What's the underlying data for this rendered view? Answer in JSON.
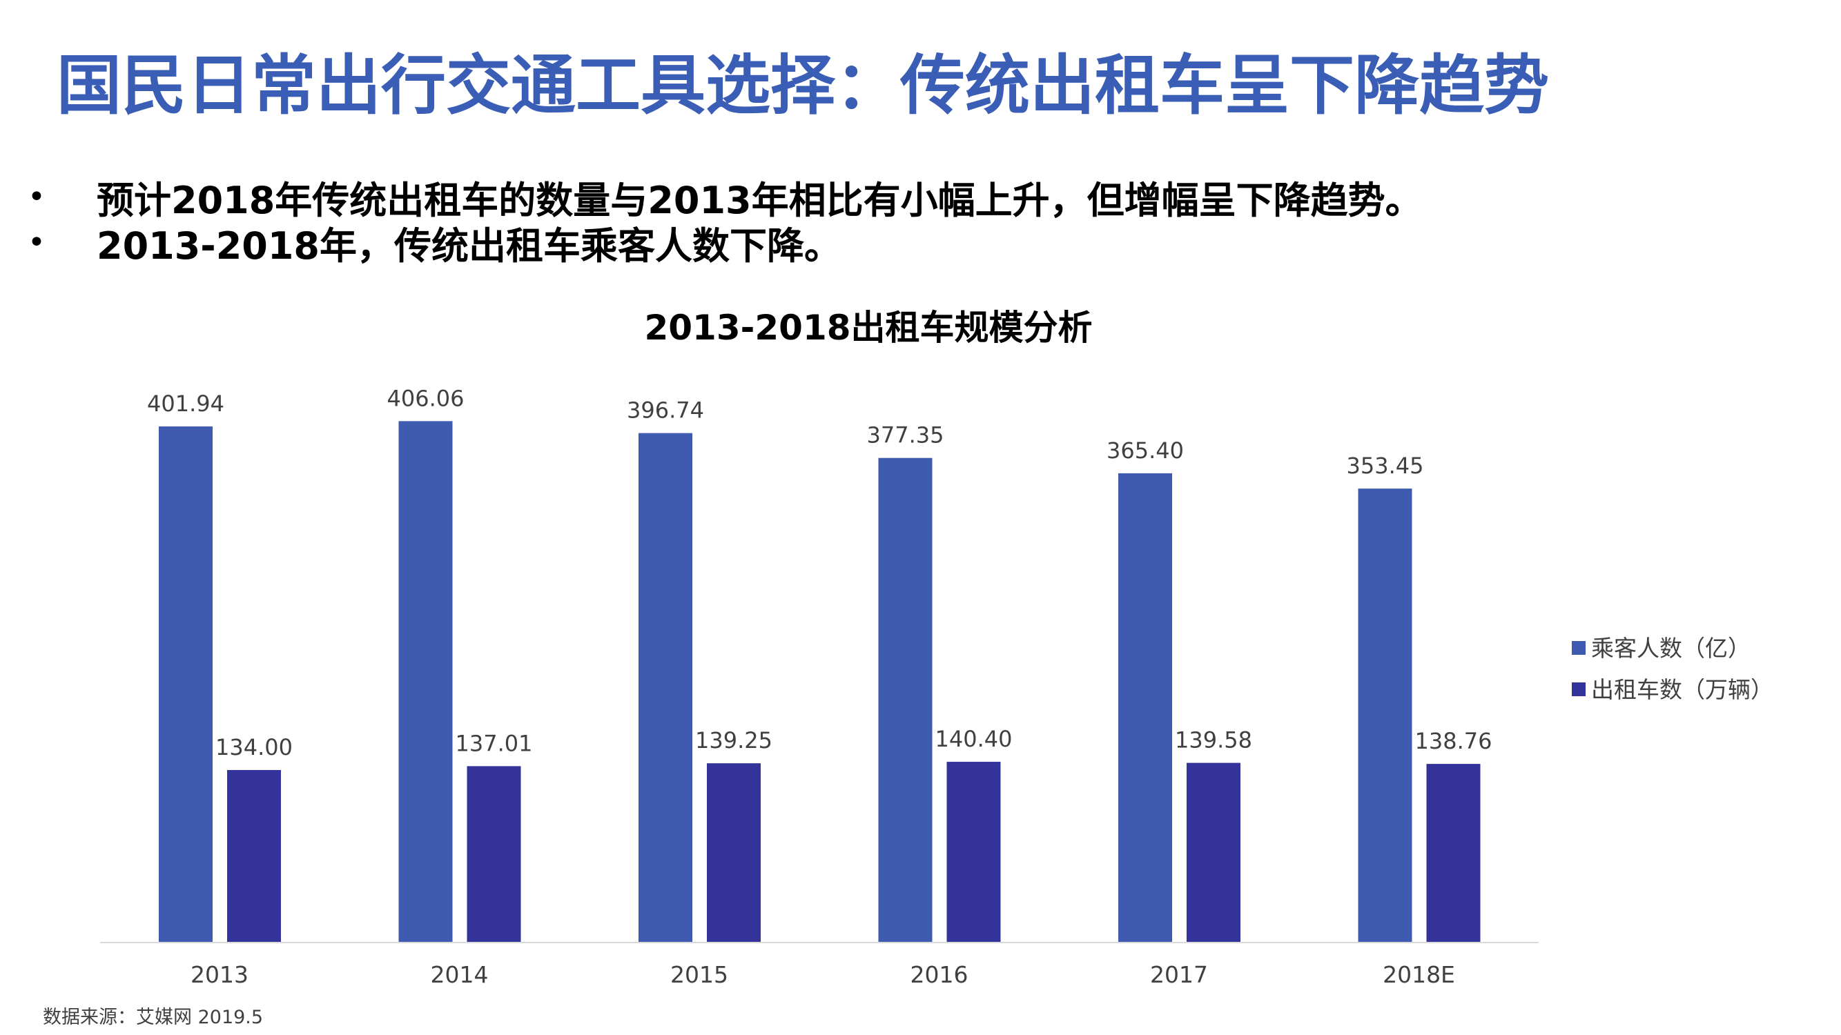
{
  "page": {
    "title": "国民日常出行交通工具选择：传统出租车呈下降趋势",
    "bullets": [
      "预计2018年传统出租车的数量与2013年相比有小幅上升，但增幅呈下降趋势。",
      "2013-2018年，传统出租车乘客人数下降。"
    ],
    "bullet_marker": "•",
    "source": "数据来源：艾媒网 2019.5"
  },
  "chart_data": {
    "type": "bar",
    "title": "2013-2018出租车规模分析",
    "categories": [
      "2013",
      "2014",
      "2015",
      "2016",
      "2017",
      "2018E"
    ],
    "series": [
      {
        "name": "乘客人数（亿）",
        "values": [
          401.94,
          406.06,
          396.74,
          377.35,
          365.4,
          353.45
        ],
        "labels": [
          "401.94",
          "406.06",
          "396.74",
          "377.35",
          "365.40",
          "353.45"
        ],
        "color": "#3f5bb0"
      },
      {
        "name": "出租车数（万辆）",
        "values": [
          134.0,
          137.01,
          139.25,
          140.4,
          139.58,
          138.76
        ],
        "labels": [
          "134.00",
          "137.01",
          "139.25",
          "140.40",
          "139.58",
          "138.76"
        ],
        "color": "#333399"
      }
    ],
    "ylim": [
      0,
      410
    ],
    "grid": false,
    "legend": "right",
    "data_labels": true
  }
}
